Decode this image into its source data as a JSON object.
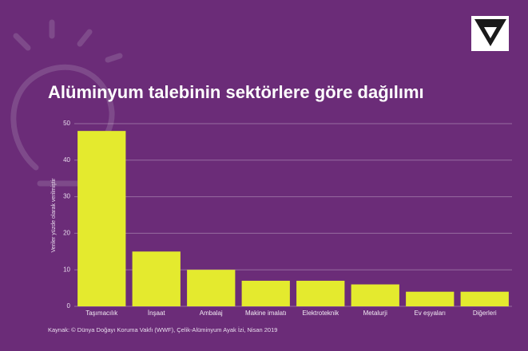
{
  "chart_data": {
    "type": "bar",
    "title": "Alüminyum talebinin sektörlere göre dağılımı",
    "y_label": "Veriler yüzde olarak verilmiştir",
    "source": "Kaynak: © Dünya Doğayı Koruma Vakfı (WWF), Çelik-Alüminyum Ayak İzi, Nisan 2019",
    "categories": [
      "Taşımacılık",
      "İnşaat",
      "Ambalaj",
      "Makine imalatı",
      "Elektroteknik",
      "Metalurji",
      "Ev eşyaları",
      "Diğerleri"
    ],
    "values": [
      48,
      15,
      10,
      7,
      7,
      6,
      4,
      4
    ],
    "color": "#e4ea2e",
    "ylim": [
      0,
      50
    ],
    "yticks": [
      0,
      10,
      20,
      30,
      40,
      50
    ],
    "grid": true
  }
}
